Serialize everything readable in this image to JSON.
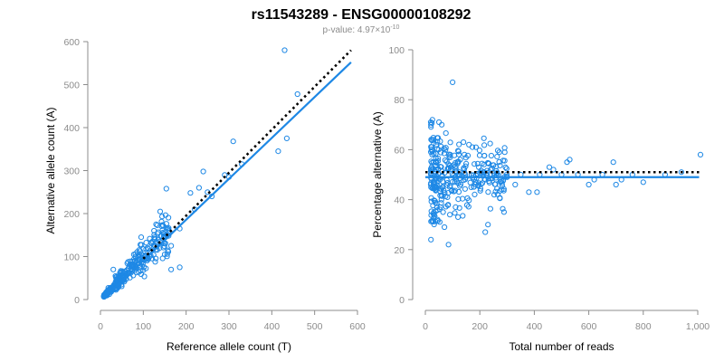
{
  "figure": {
    "title": "rs11543289 - ENSG00000108292",
    "subtitle_prefix": "p-value: 4.97×10",
    "subtitle_exponent": "-10"
  },
  "chart_data": [
    {
      "type": "scatter",
      "name": "allele-counts",
      "xlabel": "Reference allele count (T)",
      "ylabel": "Alternative allele count (A)",
      "xlim": [
        0,
        600
      ],
      "ylim": [
        0,
        600
      ],
      "xticks": [
        0,
        100,
        200,
        300,
        400,
        500,
        600
      ],
      "yticks": [
        0,
        100,
        200,
        300,
        400,
        500,
        600
      ],
      "xtick_labels": [
        "0",
        "100",
        "200",
        "300",
        "400",
        "500",
        "600"
      ],
      "ytick_labels": [
        "0",
        "100",
        "200",
        "300",
        "400",
        "500",
        "600"
      ],
      "grid": false,
      "highlight_points": [
        [
          430,
          580
        ],
        [
          460,
          478
        ],
        [
          435,
          375
        ],
        [
          415,
          345
        ],
        [
          310,
          368
        ],
        [
          330,
          315
        ],
        [
          290,
          290
        ],
        [
          300,
          285
        ],
        [
          240,
          298
        ],
        [
          230,
          260
        ],
        [
          260,
          240
        ],
        [
          220,
          210
        ],
        [
          210,
          248
        ],
        [
          250,
          250
        ],
        [
          185,
          165
        ],
        [
          165,
          125
        ],
        [
          165,
          70
        ],
        [
          185,
          75
        ],
        [
          150,
          105
        ],
        [
          155,
          150
        ],
        [
          130,
          175
        ],
        [
          125,
          160
        ],
        [
          30,
          70
        ],
        [
          95,
          145
        ]
      ],
      "cluster": {
        "n": 300,
        "x_range": [
          8,
          160
        ],
        "ratio_mean": 1.0,
        "ratio_sd": 0.18,
        "seed": 7
      },
      "fit_line": {
        "x": [
          10,
          585
        ],
        "y": [
          5,
          552
        ]
      },
      "reference_line": {
        "x": [
          100,
          585
        ],
        "y": [
          95,
          580
        ]
      }
    },
    {
      "type": "scatter",
      "name": "percentage-alternative",
      "xlabel": "Total number of reads",
      "ylabel": "Percentage alternative (A)",
      "xlim": [
        0,
        1000
      ],
      "ylim": [
        0,
        100
      ],
      "xticks": [
        0,
        200,
        400,
        600,
        800,
        1000
      ],
      "yticks": [
        0,
        20,
        40,
        60,
        80,
        100
      ],
      "xtick_labels": [
        "0",
        "200",
        "400",
        "600",
        "800",
        "1,000"
      ],
      "ytick_labels": [
        "0",
        "20",
        "40",
        "60",
        "80",
        "100"
      ],
      "grid": false,
      "highlight_points": [
        [
          100,
          87
        ],
        [
          50,
          71
        ],
        [
          60,
          70
        ],
        [
          85,
          22
        ],
        [
          220,
          27
        ],
        [
          230,
          30
        ],
        [
          45,
          32
        ],
        [
          70,
          29
        ],
        [
          530,
          56
        ],
        [
          520,
          55
        ],
        [
          690,
          55
        ],
        [
          800,
          47
        ],
        [
          940,
          51
        ],
        [
          1010,
          58
        ],
        [
          760,
          50
        ],
        [
          620,
          48
        ],
        [
          600,
          46
        ],
        [
          420,
          50
        ],
        [
          455,
          53
        ],
        [
          470,
          52
        ],
        [
          500,
          50
        ],
        [
          560,
          50
        ],
        [
          650,
          50
        ],
        [
          700,
          46
        ],
        [
          720,
          48
        ],
        [
          880,
          50
        ],
        [
          380,
          43
        ],
        [
          410,
          43
        ],
        [
          330,
          46
        ],
        [
          350,
          50
        ],
        [
          300,
          49
        ],
        [
          260,
          48
        ],
        [
          280,
          44
        ],
        [
          240,
          52
        ],
        [
          40,
          62
        ],
        [
          30,
          55
        ],
        [
          25,
          58
        ],
        [
          35,
          47
        ],
        [
          20,
          46
        ],
        [
          55,
          37
        ],
        [
          65,
          35
        ],
        [
          90,
          34
        ],
        [
          120,
          33
        ],
        [
          140,
          63
        ],
        [
          160,
          62
        ]
      ],
      "cluster": {
        "n": 320,
        "x_range": [
          20,
          300
        ],
        "pct_mean": 49,
        "pct_sd": 7,
        "seed": 13
      },
      "fit_line": {
        "x": [
          0,
          1005
        ],
        "y": [
          49,
          49
        ]
      },
      "reference_line": {
        "x": [
          0,
          1005
        ],
        "y": [
          51,
          51
        ]
      }
    }
  ]
}
